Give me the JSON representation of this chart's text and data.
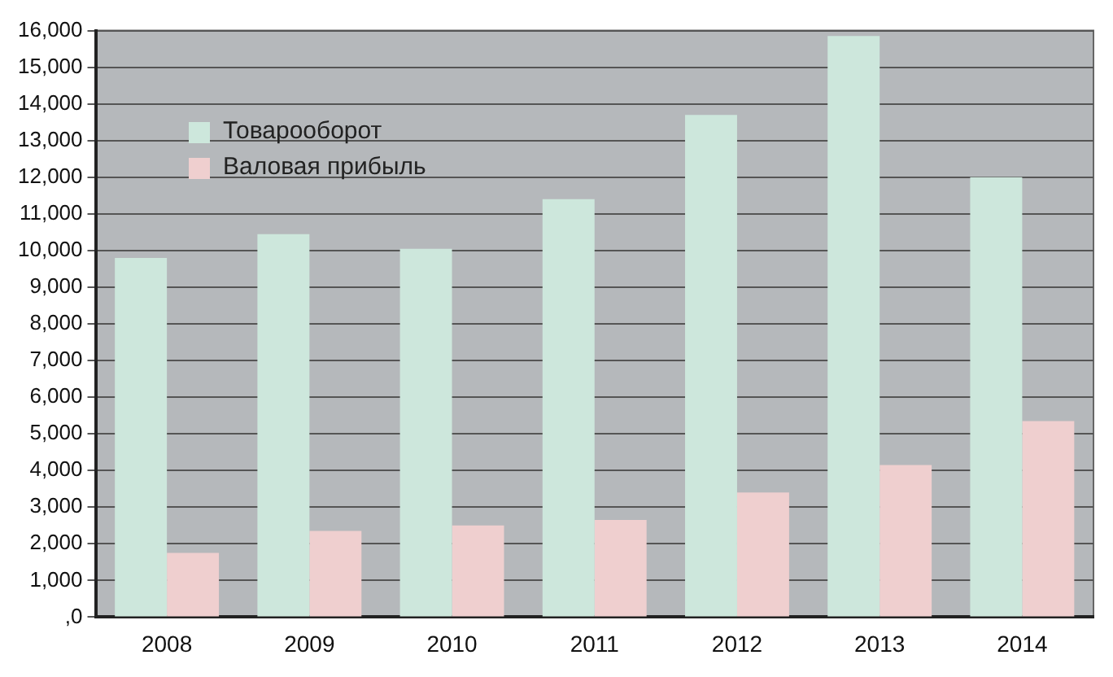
{
  "chart_data": {
    "type": "bar",
    "categories": [
      "2008",
      "2009",
      "2010",
      "2011",
      "2012",
      "2013",
      "2014"
    ],
    "series": [
      {
        "name": "Товарооборот",
        "color": "#cde7dc",
        "values": [
          9800,
          10450,
          10050,
          11400,
          13700,
          15850,
          12000
        ]
      },
      {
        "name": "Валовая прибыль",
        "color": "#efcfcf",
        "values": [
          1750,
          2350,
          2500,
          2650,
          3400,
          4150,
          5350
        ]
      }
    ],
    "ylim": [
      0,
      16000
    ],
    "yticks": [
      {
        "value": 0,
        "label": ",0"
      },
      {
        "value": 1000,
        "label": "1,000"
      },
      {
        "value": 2000,
        "label": "2,000"
      },
      {
        "value": 3000,
        "label": "3,000"
      },
      {
        "value": 4000,
        "label": "4,000"
      },
      {
        "value": 5000,
        "label": "5,000"
      },
      {
        "value": 6000,
        "label": "6,000"
      },
      {
        "value": 7000,
        "label": "7,000"
      },
      {
        "value": 8000,
        "label": "8,000"
      },
      {
        "value": 9000,
        "label": "9,000"
      },
      {
        "value": 10000,
        "label": "10,000"
      },
      {
        "value": 11000,
        "label": "11,000"
      },
      {
        "value": 12000,
        "label": "12,000"
      },
      {
        "value": 13000,
        "label": "13,000"
      },
      {
        "value": 14000,
        "label": "14,000"
      },
      {
        "value": 15000,
        "label": "15,000"
      },
      {
        "value": 16000,
        "label": "16,000"
      }
    ],
    "grid": "y",
    "legend": "top left"
  }
}
